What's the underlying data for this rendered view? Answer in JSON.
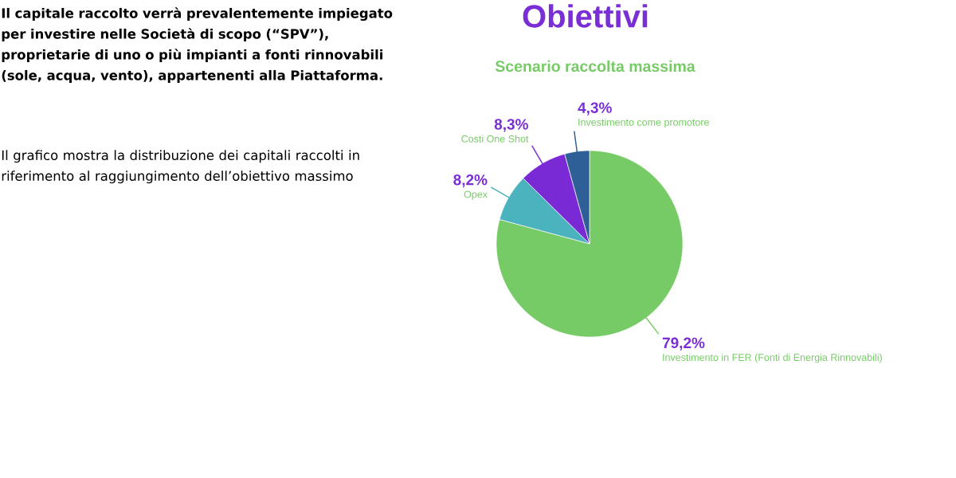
{
  "chart_data": {
    "type": "pie",
    "title": "Obiettivi",
    "subtitle": "Scenario raccolta massima",
    "categories": [
      "Investimento in FER (Fonti di Energia Rinnovabili)",
      "Opex",
      "Costi One Shot",
      "Investimento come promotore"
    ],
    "values": [
      79.2,
      8.2,
      8.3,
      4.3
    ],
    "colors": [
      "#77cb66",
      "#4bb3bd",
      "#7a2ad4",
      "#2e5f96"
    ],
    "value_labels": [
      "79,2%",
      "8,2%",
      "8,3%",
      "4,3%"
    ],
    "annotations": [
      "Il capitale raccolto verrà prevalentemente impiegato per investire nelle Società di scopo (“SPV”), proprietarie di uno o più impianti a fonti rinnovabili (sole, acqua, vento), appartenenti alla Piattaforma.",
      "Il grafico mostra la distribuzione dei capitali raccolti in riferimento al raggiungimento dell’obiettivo massimo"
    ]
  }
}
